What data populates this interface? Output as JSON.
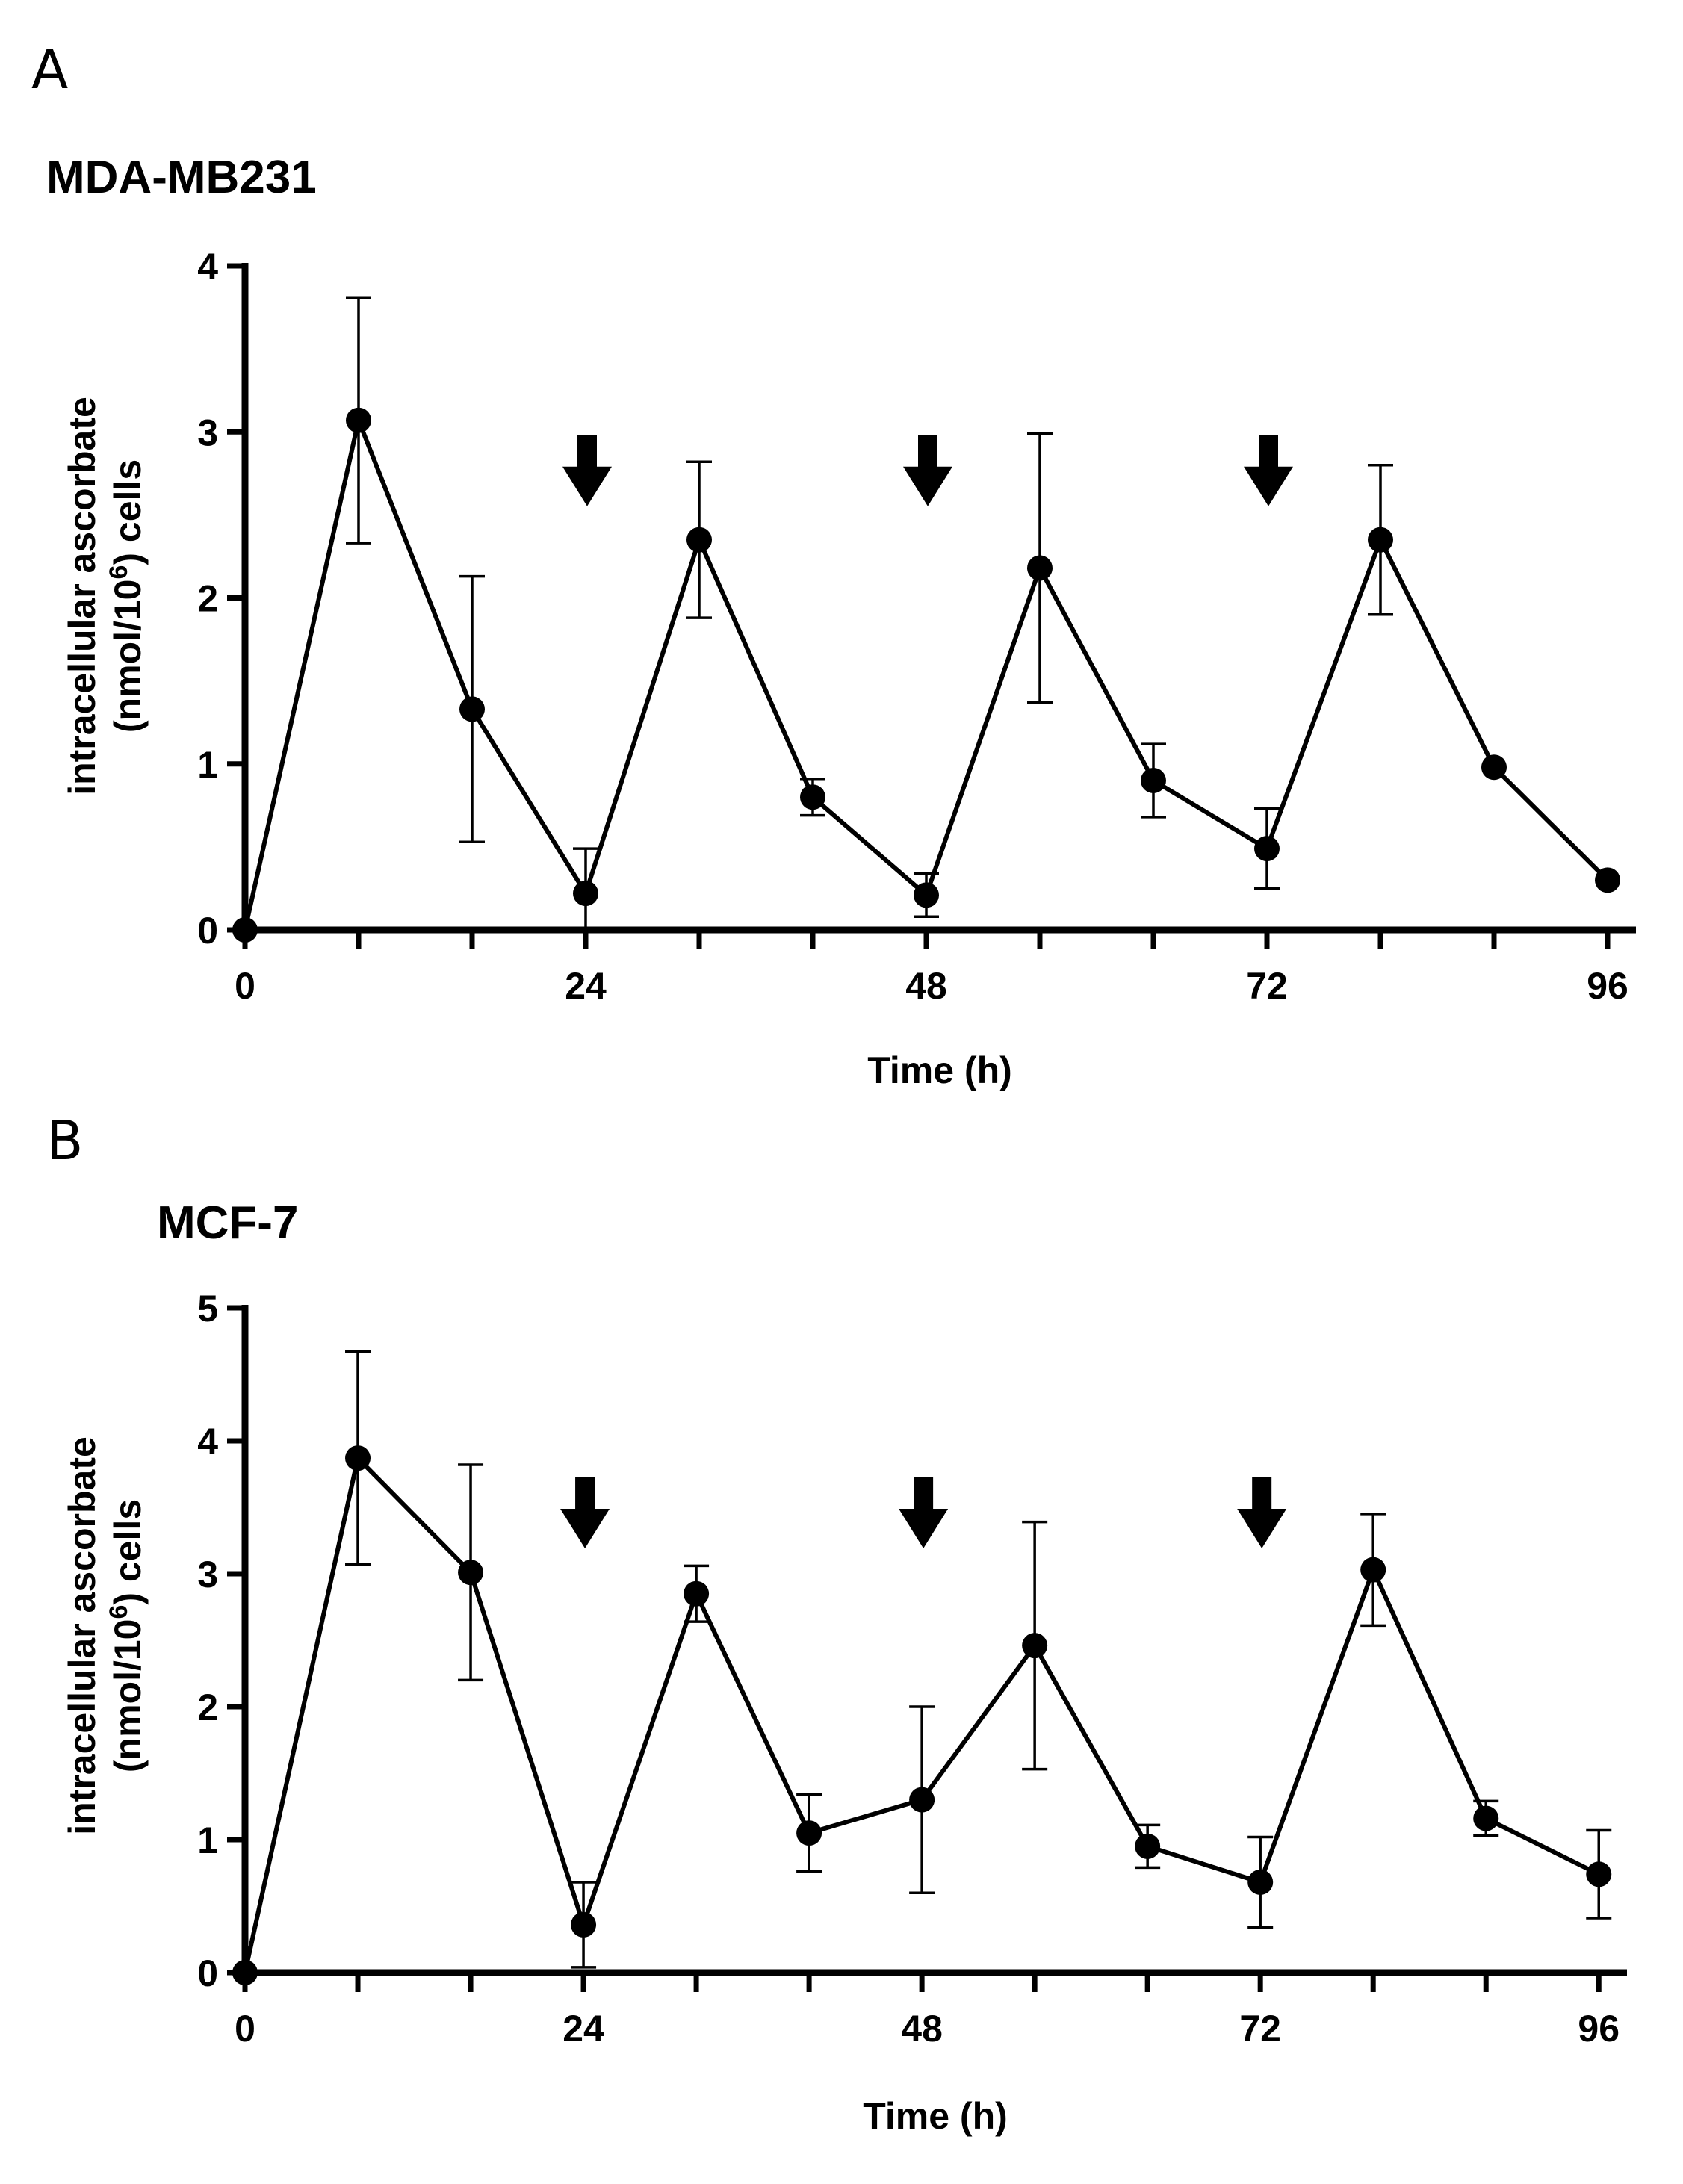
{
  "chart_data": [
    {
      "type": "line",
      "panel": "A",
      "title": "MDA-MB231",
      "xlabel": "Time (h)",
      "ylabel_line1": "intracellular ascorbate",
      "ylabel_line2_pre": "(nmol/10",
      "ylabel_line2_sup": "6",
      "ylabel_line2_post": ") cells",
      "xlim": [
        0,
        98
      ],
      "ylim": [
        0,
        4
      ],
      "xticks": [
        0,
        24,
        48,
        72,
        96
      ],
      "xminorticks": [
        8,
        16,
        32,
        40,
        56,
        64,
        80,
        88
      ],
      "yticks": [
        0,
        1,
        2,
        3,
        4
      ],
      "arrows_at": [
        24,
        48,
        72
      ],
      "series": [
        {
          "name": "MDA-MB231",
          "x": [
            0,
            8,
            16,
            24,
            32,
            40,
            48,
            56,
            64,
            72,
            80,
            88,
            96
          ],
          "y": [
            0,
            3.07,
            1.33,
            0.22,
            2.35,
            0.8,
            0.21,
            2.18,
            0.9,
            0.49,
            2.35,
            0.98,
            0.3
          ],
          "err": [
            0,
            0.74,
            0.8,
            0.27,
            0.47,
            0.11,
            0.13,
            0.81,
            0.22,
            0.24,
            0.45,
            0,
            0
          ]
        }
      ]
    },
    {
      "type": "line",
      "panel": "B",
      "title": "MCF-7",
      "xlabel": "Time (h)",
      "ylabel_line1": "intracellular ascorbate",
      "ylabel_line2_pre": "(nmol/10",
      "ylabel_line2_sup": "6",
      "ylabel_line2_post": ") cells",
      "xlim": [
        0,
        98
      ],
      "ylim": [
        0,
        5
      ],
      "xticks": [
        0,
        24,
        48,
        72,
        96
      ],
      "xminorticks": [
        8,
        16,
        32,
        40,
        56,
        64,
        80,
        88
      ],
      "yticks": [
        0,
        1,
        2,
        3,
        4,
        5
      ],
      "arrows_at": [
        24,
        48,
        72
      ],
      "series": [
        {
          "name": "MCF-7",
          "x": [
            0,
            8,
            16,
            24,
            32,
            40,
            48,
            56,
            64,
            72,
            80,
            88,
            96
          ],
          "y": [
            0,
            3.87,
            3.01,
            0.36,
            2.85,
            1.05,
            1.3,
            2.46,
            0.95,
            0.68,
            3.03,
            1.16,
            0.74
          ],
          "err": [
            0,
            0.8,
            0.81,
            0.32,
            0.21,
            0.29,
            0.7,
            0.93,
            0.16,
            0.34,
            0.42,
            0.13,
            0.33
          ]
        }
      ]
    }
  ]
}
